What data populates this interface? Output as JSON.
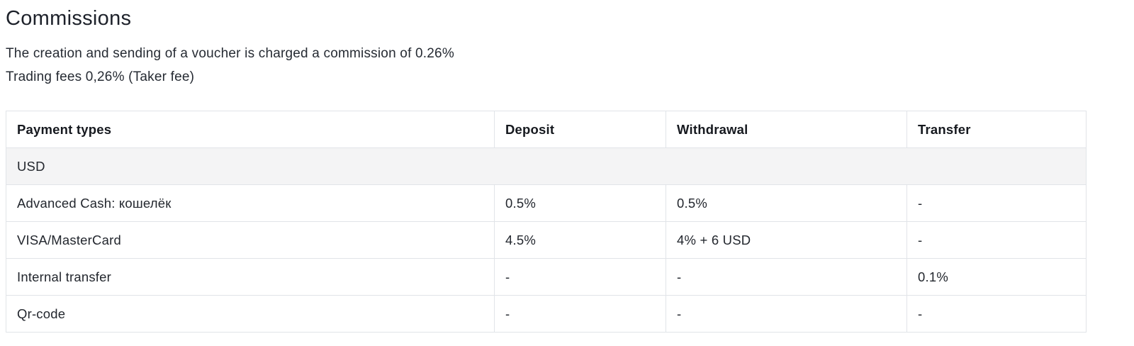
{
  "page": {
    "title": "Commissions",
    "description_line1": "The creation and sending of a voucher is charged a commission of 0.26%",
    "description_line2": "Trading fees 0,26% (Taker fee)"
  },
  "table": {
    "headers": {
      "payment_types": "Payment types",
      "deposit": "Deposit",
      "withdrawal": "Withdrawal",
      "transfer": "Transfer"
    },
    "group_label": "USD",
    "rows": [
      {
        "payment_type": "Advanced Cash: кошелёк",
        "deposit": "0.5%",
        "withdrawal": "0.5%",
        "transfer": "-"
      },
      {
        "payment_type": "VISA/MasterCard",
        "deposit": "4.5%",
        "withdrawal": "4% + 6 USD",
        "transfer": "-"
      },
      {
        "payment_type": "Internal transfer",
        "deposit": "-",
        "withdrawal": "-",
        "transfer": "0.1%"
      },
      {
        "payment_type": "Qr-code",
        "deposit": "-",
        "withdrawal": "-",
        "transfer": "-"
      }
    ]
  },
  "colors": {
    "text": "#23272e",
    "heading_text": "#1d212a",
    "table_border": "#e1e4e8",
    "group_row_background": "#f4f4f5",
    "page_background": "#ffffff"
  }
}
